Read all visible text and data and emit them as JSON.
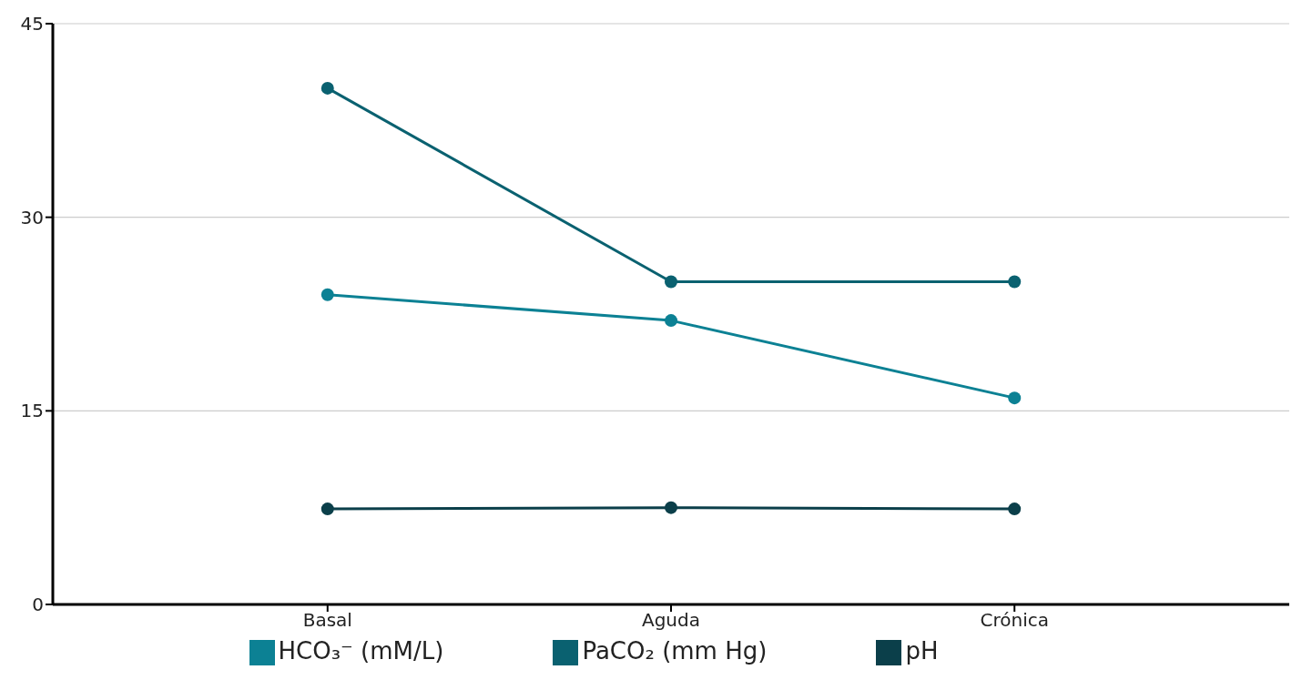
{
  "chart_data": {
    "type": "line",
    "categories": [
      "Basal",
      "Aguda",
      "Crónica"
    ],
    "series": [
      {
        "name": "pH",
        "color": "#0b3f4a",
        "values": [
          7.4,
          7.5,
          7.4
        ]
      },
      {
        "name": "PaCO₂ (mm Hg)",
        "color": "#0a6170",
        "values": [
          40,
          25,
          25
        ]
      },
      {
        "name": "HCO₃⁻ (mM/L)",
        "color": "#0c8194",
        "values": [
          24,
          22,
          16
        ]
      }
    ],
    "ylim": [
      0,
      45
    ],
    "yticks": [
      0,
      15,
      30,
      45
    ],
    "grid": "y",
    "legend": "bottom",
    "marker": "circle",
    "line_style": "solid"
  }
}
